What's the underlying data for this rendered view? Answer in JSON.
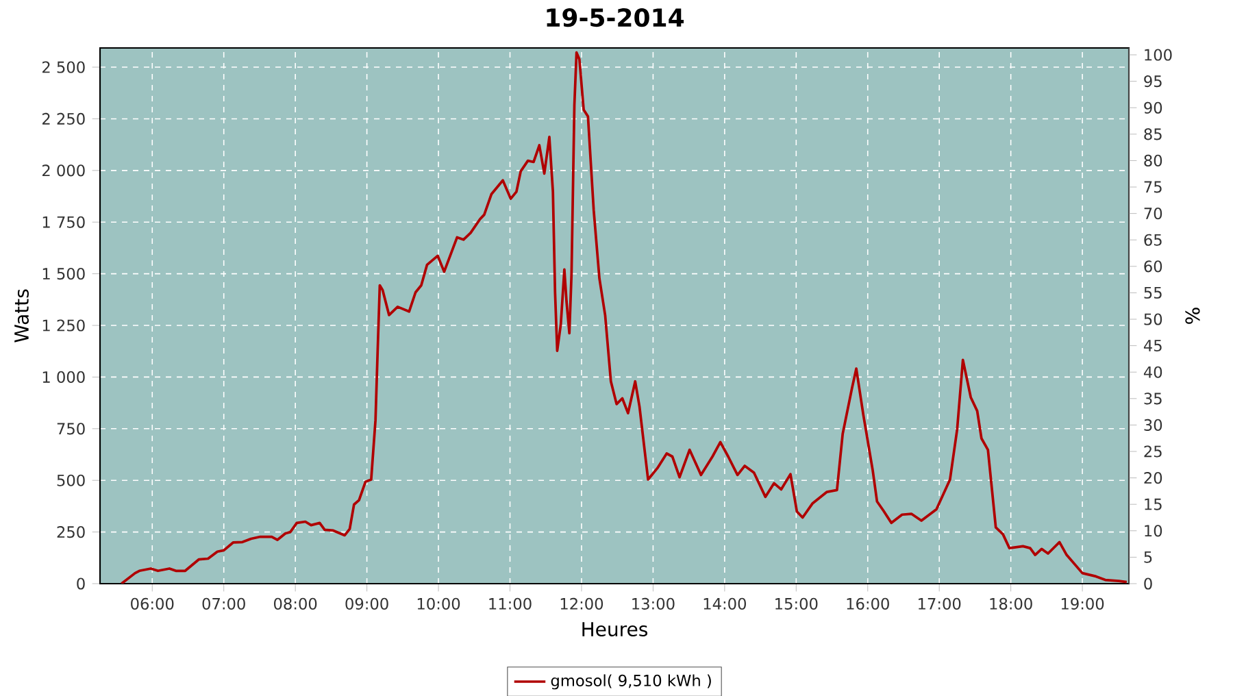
{
  "chart_data": {
    "type": "line",
    "title": "19-5-2014",
    "xlabel": "Heures",
    "ylabel": "Watts",
    "y2label": "%",
    "x": [
      5.57,
      5.76,
      5.82,
      5.98,
      6.08,
      6.24,
      6.33,
      6.46,
      6.65,
      6.78,
      6.91,
      7.0,
      7.13,
      7.26,
      7.38,
      7.51,
      7.67,
      7.75,
      7.86,
      7.93,
      8.02,
      8.14,
      8.22,
      8.34,
      8.41,
      8.53,
      8.69,
      8.76,
      8.82,
      8.89,
      8.98,
      9.06,
      9.12,
      9.15,
      9.18,
      9.22,
      9.31,
      9.43,
      9.59,
      9.68,
      9.76,
      9.84,
      9.99,
      10.08,
      10.26,
      10.35,
      10.45,
      10.58,
      10.64,
      10.74,
      10.9,
      11.01,
      11.09,
      11.15,
      11.25,
      11.33,
      11.41,
      11.48,
      11.55,
      11.6,
      11.63,
      11.66,
      11.71,
      11.76,
      11.79,
      11.83,
      11.86,
      11.9,
      11.93,
      11.97,
      12.03,
      12.09,
      12.17,
      12.25,
      12.33,
      12.41,
      12.49,
      12.57,
      12.65,
      12.75,
      12.81,
      12.93,
      13.06,
      13.19,
      13.27,
      13.37,
      13.51,
      13.67,
      13.83,
      13.94,
      14.05,
      14.18,
      14.28,
      14.41,
      14.57,
      14.69,
      14.79,
      14.92,
      15.01,
      15.09,
      15.23,
      15.43,
      15.57,
      15.65,
      15.78,
      15.84,
      15.94,
      16.07,
      16.13,
      16.22,
      16.33,
      16.48,
      16.61,
      16.75,
      16.96,
      17.15,
      17.25,
      17.33,
      17.44,
      17.53,
      17.59,
      17.68,
      17.79,
      17.89,
      17.98,
      18.17,
      18.27,
      18.34,
      18.43,
      18.52,
      18.68,
      18.78,
      19.0,
      19.19,
      19.32,
      19.51,
      19.62
    ],
    "series": [
      {
        "name": "gmosol( 9,510 kWh )",
        "color": "#b00000",
        "values": [
          0,
          51,
          62,
          73,
          62,
          73,
          62,
          62,
          117,
          121,
          155,
          161,
          199,
          201,
          217,
          227,
          227,
          212,
          243,
          250,
          294,
          300,
          283,
          294,
          261,
          257,
          234,
          265,
          383,
          404,
          493,
          504,
          791,
          1123,
          1444,
          1421,
          1300,
          1340,
          1317,
          1410,
          1444,
          1543,
          1587,
          1510,
          1676,
          1665,
          1698,
          1764,
          1786,
          1885,
          1952,
          1863,
          1897,
          1996,
          2047,
          2041,
          2122,
          1985,
          2162,
          1897,
          1410,
          1127,
          1255,
          1521,
          1366,
          1212,
          1499,
          2316,
          2571,
          2538,
          2294,
          2261,
          1808,
          1477,
          1300,
          979,
          869,
          897,
          825,
          979,
          857,
          504,
          559,
          630,
          615,
          515,
          648,
          526,
          615,
          685,
          615,
          526,
          570,
          537,
          420,
          486,
          456,
          530,
          349,
          320,
          389,
          444,
          453,
          725,
          946,
          1041,
          814,
          548,
          398,
          353,
          294,
          334,
          338,
          305,
          360,
          504,
          747,
          1083,
          902,
          836,
          703,
          648,
          272,
          239,
          172,
          181,
          172,
          139,
          168,
          146,
          201,
          139,
          51,
          35,
          18,
          13,
          8
        ]
      }
    ],
    "xlim": [
      5.27,
      19.65
    ],
    "xticks": [
      {
        "value": 6,
        "label": "06:00"
      },
      {
        "value": 7,
        "label": "07:00"
      },
      {
        "value": 8,
        "label": "08:00"
      },
      {
        "value": 9,
        "label": "09:00"
      },
      {
        "value": 10,
        "label": "10:00"
      },
      {
        "value": 11,
        "label": "11:00"
      },
      {
        "value": 12,
        "label": "12:00"
      },
      {
        "value": 13,
        "label": "13:00"
      },
      {
        "value": 14,
        "label": "14:00"
      },
      {
        "value": 15,
        "label": "15:00"
      },
      {
        "value": 16,
        "label": "16:00"
      },
      {
        "value": 17,
        "label": "17:00"
      },
      {
        "value": 18,
        "label": "18:00"
      },
      {
        "value": 19,
        "label": "19:00"
      }
    ],
    "ylim": [
      0,
      2593
    ],
    "yticks": [
      0,
      250,
      500,
      750,
      {
        "value": 1000,
        "label": "1 000"
      },
      {
        "value": 1250,
        "label": "1 250"
      },
      {
        "value": 1500,
        "label": "1 500"
      },
      {
        "value": 1750,
        "label": "1 750"
      },
      {
        "value": 2000,
        "label": "2 000"
      },
      {
        "value": 2250,
        "label": "2 250"
      },
      {
        "value": 2500,
        "label": "2 500"
      }
    ],
    "y2lim": [
      0,
      101.3
    ],
    "y2ticks": [
      0,
      5,
      10,
      15,
      20,
      25,
      30,
      35,
      40,
      45,
      50,
      55,
      60,
      65,
      70,
      75,
      80,
      85,
      90,
      95,
      100
    ],
    "grid": true,
    "legend": "bottom"
  }
}
